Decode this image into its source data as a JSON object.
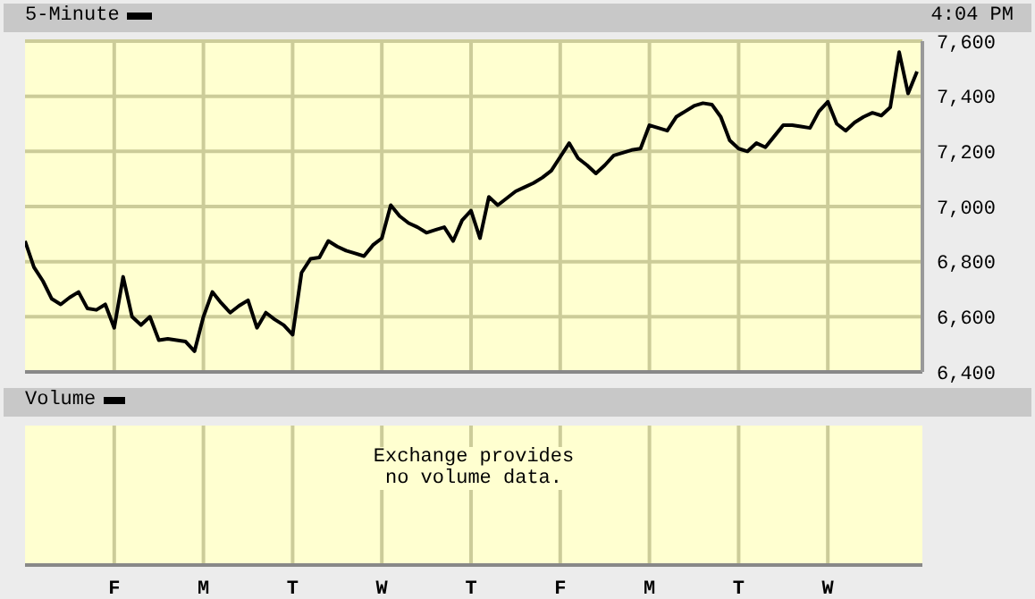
{
  "chart_data": [
    {
      "type": "line",
      "legend": "top left",
      "grid": true,
      "marker": "none",
      "line_style": "solid",
      "tick_labels": "y",
      "categories": [
        null,
        null,
        null,
        null,
        null,
        null,
        null,
        null,
        null,
        null,
        null,
        null,
        null,
        null,
        null,
        null,
        null,
        null,
        null,
        null,
        null,
        null,
        null,
        null,
        null,
        null,
        null,
        null,
        null,
        null,
        null,
        null,
        null,
        null,
        null,
        null,
        null,
        null,
        null,
        null,
        null,
        null,
        null,
        null,
        null,
        null,
        null,
        null,
        null,
        null,
        null,
        null,
        null,
        null,
        null,
        null,
        null,
        null,
        null,
        null,
        null,
        null,
        null,
        null,
        null,
        null,
        null,
        null,
        null,
        null,
        null,
        null,
        null,
        null,
        null,
        null,
        null,
        null,
        null,
        null,
        null,
        null,
        null,
        null,
        null,
        null,
        null,
        null,
        null,
        null,
        null,
        null,
        null,
        null,
        null,
        null,
        null,
        null,
        null,
        null,
        null
      ],
      "series": [
        {
          "name": "5-Minute",
          "color": "#000000",
          "values": [
            6875,
            6780,
            6730,
            6665,
            6645,
            6670,
            6690,
            6630,
            6625,
            6645,
            6560,
            6745,
            6600,
            6570,
            6600,
            6515,
            6520,
            6515,
            6510,
            6475,
            6600,
            6690,
            6650,
            6615,
            6640,
            6660,
            6560,
            6615,
            6590,
            6570,
            6535,
            6760,
            6810,
            6815,
            6875,
            6855,
            6840,
            6830,
            6820,
            6860,
            6885,
            7005,
            6965,
            6940,
            6925,
            6905,
            6915,
            6925,
            6875,
            6950,
            6985,
            6885,
            7035,
            7005,
            7030,
            7055,
            7070,
            7085,
            7105,
            7130,
            7180,
            7230,
            7175,
            7150,
            7120,
            7150,
            7185,
            7195,
            7205,
            7210,
            7295,
            7285,
            7275,
            7325,
            7345,
            7365,
            7375,
            7370,
            7325,
            7240,
            7210,
            7200,
            7230,
            7215,
            7255,
            7295,
            7295,
            7290,
            7285,
            7345,
            7380,
            7300,
            7275,
            7305,
            7325,
            7340,
            7330,
            7360,
            7560,
            7410,
            7490
          ]
        }
      ],
      "ylim": [
        6400,
        7600
      ],
      "yticks": [
        {
          "value": 6400,
          "label": "6,400"
        },
        {
          "value": 6600,
          "label": "6,600"
        },
        {
          "value": 6800,
          "label": "6,800"
        },
        {
          "value": 7000,
          "label": "7,000"
        },
        {
          "value": 7200,
          "label": "7,200"
        },
        {
          "value": 7400,
          "label": "7,400"
        },
        {
          "value": 7600,
          "label": "7,600"
        }
      ],
      "annotations": [
        "4:04 PM"
      ]
    },
    {
      "type": "other",
      "title": "Volume",
      "categories": [
        null,
        null,
        null,
        null,
        null,
        null,
        null,
        null,
        null,
        null,
        "F",
        null,
        null,
        null,
        null,
        null,
        null,
        null,
        null,
        null,
        "M",
        null,
        null,
        null,
        null,
        null,
        null,
        null,
        null,
        null,
        "T",
        null,
        null,
        null,
        null,
        null,
        null,
        null,
        null,
        null,
        "W",
        null,
        null,
        null,
        null,
        null,
        null,
        null,
        null,
        null,
        "T",
        null,
        null,
        null,
        null,
        null,
        null,
        null,
        null,
        null,
        "F",
        null,
        null,
        null,
        null,
        null,
        null,
        null,
        null,
        null,
        "M",
        null,
        null,
        null,
        null,
        null,
        null,
        null,
        null,
        null,
        "T",
        null,
        null,
        null,
        null,
        null,
        null,
        null,
        null,
        null,
        "W",
        null,
        null,
        null,
        null,
        null,
        null,
        null,
        null,
        null,
        null
      ],
      "annotations": [
        "Exchange provides no volume data."
      ]
    }
  ]
}
